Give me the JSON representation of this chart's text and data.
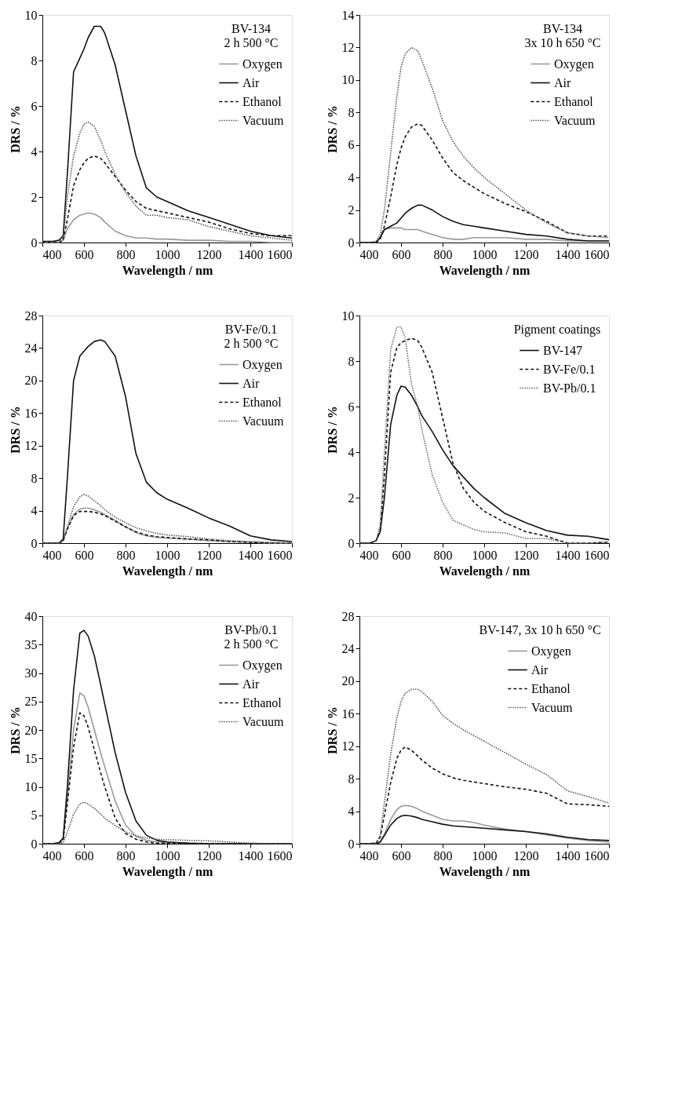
{
  "chart_data": [
    {
      "type": "line",
      "legend_title": "BV-134\n2 h 500 °C",
      "xlabel": "Wavelength / nm",
      "ylabel": "DRS / %",
      "legend": "top right",
      "grid": false,
      "x": [
        400,
        450,
        480,
        500,
        520,
        550,
        580,
        600,
        620,
        650,
        680,
        700,
        750,
        800,
        850,
        900,
        950,
        1000,
        1100,
        1200,
        1300,
        1400,
        1500,
        1600
      ],
      "xlim": [
        400,
        1600
      ],
      "xticks": [
        400,
        600,
        800,
        1000,
        1200,
        1400,
        1600
      ],
      "ylim": [
        0,
        10
      ],
      "yticks": [
        0,
        2,
        4,
        6,
        8,
        10
      ],
      "series": [
        {
          "name": "Oxygen",
          "color": "#999999",
          "line_style": "solid",
          "values": [
            0,
            0,
            0,
            0.1,
            0.6,
            1.0,
            1.2,
            1.25,
            1.3,
            1.25,
            1.1,
            0.9,
            0.5,
            0.3,
            0.2,
            0.2,
            0.15,
            0.15,
            0.1,
            0.1,
            0.05,
            0.05,
            0,
            0
          ]
        },
        {
          "name": "Air",
          "color": "#111111",
          "line_style": "solid",
          "values": [
            0.05,
            0.05,
            0.1,
            0.3,
            3.0,
            7.5,
            8.1,
            8.5,
            9.0,
            9.5,
            9.5,
            9.2,
            7.8,
            5.8,
            3.8,
            2.4,
            2.0,
            1.8,
            1.4,
            1.1,
            0.8,
            0.5,
            0.3,
            0.2
          ]
        },
        {
          "name": "Ethanol",
          "color": "#111111",
          "line_style": "dashed",
          "values": [
            0,
            0,
            0,
            0.1,
            1.0,
            2.5,
            3.2,
            3.5,
            3.7,
            3.8,
            3.7,
            3.5,
            2.9,
            2.3,
            1.8,
            1.5,
            1.4,
            1.3,
            1.1,
            0.9,
            0.6,
            0.4,
            0.3,
            0.3
          ]
        },
        {
          "name": "Vacuum",
          "color": "#555555",
          "line_style": "dotted",
          "values": [
            0,
            0,
            0,
            0.2,
            2.0,
            3.8,
            4.8,
            5.2,
            5.3,
            5.1,
            4.5,
            4.0,
            3.0,
            2.2,
            1.6,
            1.2,
            1.2,
            1.1,
            1.0,
            0.7,
            0.5,
            0.3,
            0.2,
            0.1
          ]
        }
      ]
    },
    {
      "type": "line",
      "legend_title": "BV-134\n3x 10 h 650 °C",
      "xlabel": "Wavelength / nm",
      "ylabel": "DRS / %",
      "legend": "top right",
      "grid": false,
      "x": [
        400,
        450,
        480,
        500,
        520,
        550,
        580,
        600,
        620,
        650,
        680,
        700,
        750,
        800,
        850,
        900,
        950,
        1000,
        1100,
        1200,
        1300,
        1400,
        1500,
        1600
      ],
      "xlim": [
        400,
        1600
      ],
      "xticks": [
        400,
        600,
        800,
        1000,
        1200,
        1400,
        1600
      ],
      "ylim": [
        0,
        14
      ],
      "yticks": [
        0,
        2,
        4,
        6,
        8,
        10,
        12,
        14
      ],
      "series": [
        {
          "name": "Oxygen",
          "color": "#999999",
          "line_style": "solid",
          "values": [
            0,
            0,
            0,
            0.3,
            0.8,
            0.9,
            0.9,
            0.9,
            0.8,
            0.8,
            0.8,
            0.7,
            0.5,
            0.3,
            0.2,
            0.2,
            0.3,
            0.3,
            0.3,
            0.2,
            0.2,
            0.1,
            0.1,
            0.1
          ]
        },
        {
          "name": "Air",
          "color": "#111111",
          "line_style": "solid",
          "values": [
            0,
            0,
            0,
            0.3,
            0.8,
            1.0,
            1.2,
            1.5,
            1.8,
            2.1,
            2.3,
            2.3,
            2.0,
            1.6,
            1.3,
            1.1,
            1.0,
            0.9,
            0.7,
            0.5,
            0.4,
            0.2,
            0.1,
            0.1
          ]
        },
        {
          "name": "Ethanol",
          "color": "#111111",
          "line_style": "dashed",
          "values": [
            0,
            0,
            0,
            0.2,
            1.0,
            2.8,
            4.8,
            5.8,
            6.5,
            7.1,
            7.3,
            7.2,
            6.3,
            5.2,
            4.3,
            3.8,
            3.4,
            3.0,
            2.4,
            1.9,
            1.3,
            0.6,
            0.4,
            0.4
          ]
        },
        {
          "name": "Vacuum",
          "color": "#555555",
          "line_style": "dotted",
          "values": [
            0,
            0,
            0.1,
            0.5,
            2,
            5.5,
            9,
            10.8,
            11.6,
            12.0,
            11.8,
            11.2,
            9.5,
            7.5,
            6.2,
            5.3,
            4.6,
            4.0,
            3.0,
            2.0,
            1.2,
            0.6,
            0.4,
            0.3
          ]
        }
      ]
    },
    {
      "type": "line",
      "legend_title": "BV-Fe/0.1\n2 h 500 °C",
      "xlabel": "Wavelength / nm",
      "ylabel": "DRS / %",
      "legend": "top right",
      "grid": false,
      "x": [
        400,
        450,
        480,
        500,
        520,
        550,
        580,
        600,
        620,
        650,
        680,
        700,
        750,
        800,
        850,
        900,
        950,
        1000,
        1100,
        1200,
        1300,
        1400,
        1500,
        1600
      ],
      "xlim": [
        400,
        1600
      ],
      "xticks": [
        400,
        600,
        800,
        1000,
        1200,
        1400,
        1600
      ],
      "ylim": [
        0,
        28
      ],
      "yticks": [
        0,
        4,
        8,
        12,
        16,
        20,
        24,
        28
      ],
      "series": [
        {
          "name": "Oxygen",
          "color": "#999999",
          "line_style": "solid",
          "values": [
            0,
            0,
            0,
            0.3,
            1.8,
            3.5,
            4.2,
            4.3,
            4.3,
            4.1,
            3.8,
            3.5,
            2.8,
            2.0,
            1.3,
            0.9,
            0.7,
            0.6,
            0.5,
            0.3,
            0.2,
            0.1,
            0,
            0
          ]
        },
        {
          "name": "Air",
          "color": "#111111",
          "line_style": "solid",
          "values": [
            0,
            0,
            0,
            0.5,
            8,
            20,
            23,
            23.6,
            24.2,
            24.8,
            25,
            24.8,
            23,
            18,
            11,
            7.5,
            6.2,
            5.4,
            4.3,
            3.1,
            2.1,
            0.9,
            0.4,
            0.2
          ]
        },
        {
          "name": "Ethanol",
          "color": "#111111",
          "line_style": "dashed",
          "values": [
            0,
            0,
            0,
            0.3,
            1.7,
            3.4,
            3.9,
            3.9,
            3.9,
            3.8,
            3.6,
            3.4,
            2.7,
            2.0,
            1.4,
            1.0,
            0.8,
            0.7,
            0.5,
            0.4,
            0.2,
            0.1,
            0,
            0
          ]
        },
        {
          "name": "Vacuum",
          "color": "#555555",
          "line_style": "dotted",
          "values": [
            0,
            0,
            0,
            0.3,
            2,
            4.5,
            5.7,
            6.0,
            5.8,
            5.2,
            4.6,
            4.1,
            3.2,
            2.5,
            1.9,
            1.5,
            1.2,
            1.0,
            0.8,
            0.5,
            0.3,
            0.2,
            0.1,
            0
          ]
        }
      ]
    },
    {
      "type": "line",
      "legend_title": "Pigment coatings",
      "xlabel": "Wavelength / nm",
      "ylabel": "DRS / %",
      "legend": "top right",
      "grid": false,
      "x": [
        400,
        450,
        480,
        500,
        520,
        550,
        580,
        600,
        620,
        650,
        680,
        700,
        750,
        800,
        850,
        900,
        950,
        1000,
        1100,
        1200,
        1300,
        1400,
        1500,
        1600
      ],
      "xlim": [
        400,
        1600
      ],
      "xticks": [
        400,
        600,
        800,
        1000,
        1200,
        1400,
        1600
      ],
      "ylim": [
        0,
        10
      ],
      "yticks": [
        0,
        2,
        4,
        6,
        8,
        10
      ],
      "series": [
        {
          "name": "BV-147",
          "color": "#111111",
          "line_style": "solid",
          "values": [
            0,
            0,
            0.1,
            0.5,
            2,
            5.2,
            6.5,
            6.9,
            6.85,
            6.5,
            6.0,
            5.6,
            4.9,
            4.1,
            3.4,
            2.9,
            2.4,
            2.0,
            1.3,
            0.9,
            0.55,
            0.35,
            0.3,
            0.15
          ]
        },
        {
          "name": "BV-Fe/0.1",
          "color": "#111111",
          "line_style": "dashed",
          "values": [
            0,
            0,
            0.1,
            0.6,
            3,
            7.5,
            8.6,
            8.8,
            8.9,
            9.0,
            8.9,
            8.6,
            7.5,
            5.5,
            3.5,
            2.4,
            1.8,
            1.4,
            0.9,
            0.5,
            0.3,
            0,
            0,
            0.05
          ]
        },
        {
          "name": "BV-Pb/0.1",
          "color": "#666666",
          "line_style": "dotted",
          "values": [
            0,
            0,
            0.1,
            0.8,
            4,
            8.5,
            9.5,
            9.5,
            9.0,
            7.0,
            6.0,
            5.0,
            3.0,
            1.8,
            1.0,
            0.8,
            0.6,
            0.5,
            0.45,
            0.2,
            0.2,
            0,
            0,
            0.05
          ]
        }
      ]
    },
    {
      "type": "line",
      "legend_title": "BV-Pb/0.1\n2 h 500 °C",
      "xlabel": "Wavelength / nm",
      "ylabel": "DRS / %",
      "legend": "top right",
      "grid": false,
      "x": [
        400,
        450,
        480,
        500,
        520,
        550,
        580,
        600,
        620,
        650,
        680,
        700,
        750,
        800,
        850,
        900,
        950,
        1000,
        1100,
        1200,
        1300,
        1400,
        1500,
        1600
      ],
      "xlim": [
        400,
        1600
      ],
      "xticks": [
        400,
        600,
        800,
        1000,
        1200,
        1400,
        1600
      ],
      "ylim": [
        0,
        40
      ],
      "yticks": [
        0,
        5,
        10,
        15,
        20,
        25,
        30,
        35,
        40
      ],
      "series": [
        {
          "name": "Oxygen",
          "color": "#999999",
          "line_style": "solid",
          "values": [
            0,
            0,
            0.1,
            0.8,
            8,
            20,
            26.5,
            26,
            24,
            20,
            16,
            13.5,
            7.5,
            3.3,
            1.3,
            0.6,
            0.3,
            0.2,
            0.1,
            0,
            0,
            0,
            0,
            0
          ]
        },
        {
          "name": "Air",
          "color": "#111111",
          "line_style": "solid",
          "values": [
            0,
            0,
            0.2,
            1,
            10,
            27,
            37,
            37.5,
            36.5,
            33,
            28,
            24.5,
            16,
            9,
            4,
            1.5,
            0.6,
            0.3,
            0.1,
            0,
            0,
            0,
            0,
            0
          ]
        },
        {
          "name": "Ethanol",
          "color": "#111111",
          "line_style": "dashed",
          "values": [
            0,
            0,
            0.1,
            0.7,
            7,
            17,
            23,
            22.5,
            20.5,
            16.5,
            12.5,
            10,
            4.5,
            1.8,
            0.8,
            0.3,
            0.1,
            0.1,
            0,
            0,
            0,
            0,
            0,
            0
          ]
        },
        {
          "name": "Vacuum",
          "color": "#555555",
          "line_style": "dotted",
          "values": [
            0,
            0,
            0,
            0.2,
            2,
            5.2,
            7.0,
            7.3,
            7.0,
            6.2,
            5.2,
            4.5,
            3.2,
            2.1,
            1.4,
            1.0,
            0.8,
            0.7,
            0.6,
            0.5,
            0.3,
            0.1,
            0,
            0
          ]
        }
      ]
    },
    {
      "type": "line",
      "legend_title": "BV-147, 3x 10 h 650 °C",
      "xlabel": "Wavelength / nm",
      "ylabel": "DRS / %",
      "legend": "top right",
      "grid": false,
      "x": [
        400,
        450,
        480,
        500,
        520,
        550,
        580,
        600,
        620,
        650,
        680,
        700,
        750,
        800,
        850,
        900,
        950,
        1000,
        1100,
        1200,
        1300,
        1400,
        1500,
        1600
      ],
      "xlim": [
        400,
        1600
      ],
      "xticks": [
        400,
        600,
        800,
        1000,
        1200,
        1400,
        1600
      ],
      "ylim": [
        0,
        28
      ],
      "yticks": [
        0,
        4,
        8,
        12,
        16,
        20,
        24,
        28
      ],
      "series": [
        {
          "name": "Oxygen",
          "color": "#999999",
          "line_style": "solid",
          "values": [
            0,
            0,
            0,
            0.3,
            1.2,
            3,
            4.2,
            4.6,
            4.7,
            4.6,
            4.3,
            4.0,
            3.5,
            3.0,
            2.8,
            2.8,
            2.6,
            2.3,
            1.8,
            1.5,
            1.1,
            0.7,
            0.4,
            0.2
          ]
        },
        {
          "name": "Air",
          "color": "#111111",
          "line_style": "solid",
          "values": [
            0,
            0,
            0,
            0.2,
            1.0,
            2.3,
            3.1,
            3.4,
            3.5,
            3.4,
            3.2,
            3.0,
            2.7,
            2.4,
            2.2,
            2.1,
            2.0,
            1.9,
            1.7,
            1.5,
            1.2,
            0.8,
            0.5,
            0.4
          ]
        },
        {
          "name": "Ethanol",
          "color": "#111111",
          "line_style": "dashed",
          "values": [
            0,
            0,
            0.1,
            0.8,
            3.5,
            7.5,
            10.5,
            11.5,
            11.9,
            11.5,
            10.8,
            10.3,
            9.3,
            8.6,
            8.1,
            7.8,
            7.6,
            7.4,
            7.0,
            6.7,
            6.2,
            4.9,
            4.8,
            4.6
          ]
        },
        {
          "name": "Vacuum",
          "color": "#555555",
          "line_style": "dotted",
          "values": [
            0,
            0,
            0.1,
            1.0,
            5,
            11,
            15.5,
            17.5,
            18.5,
            19,
            19,
            18.7,
            17.5,
            15.8,
            14.8,
            14,
            13.3,
            12.6,
            11.2,
            9.8,
            8.5,
            6.5,
            5.8,
            5.0
          ]
        }
      ]
    }
  ]
}
